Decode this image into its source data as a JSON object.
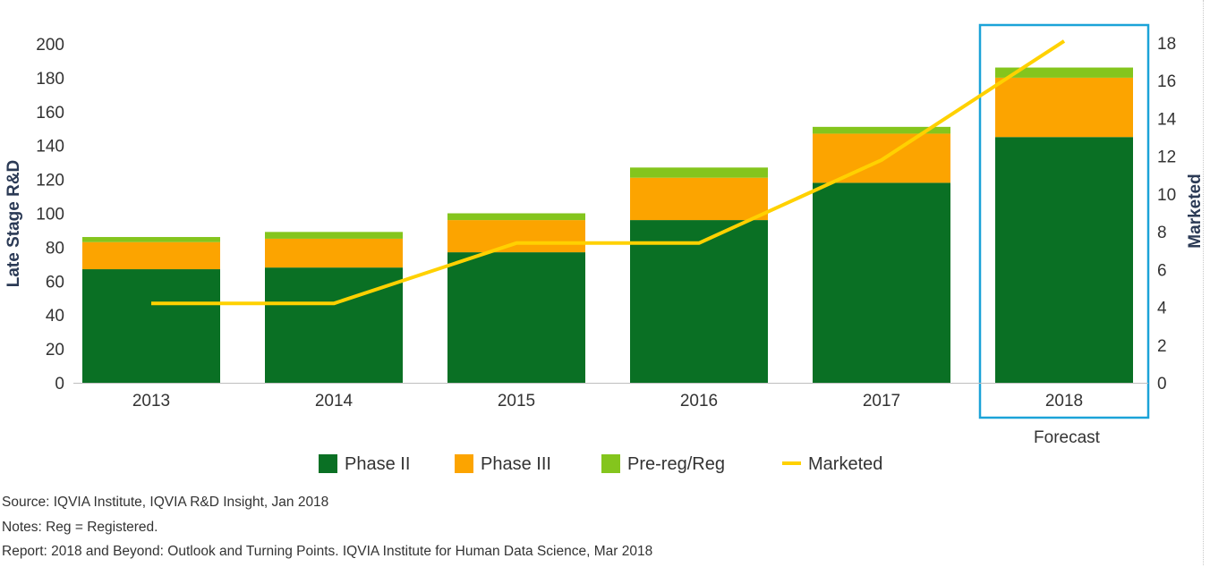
{
  "chart_data": {
    "type": "bar",
    "stacked": true,
    "categories": [
      "2013",
      "2014",
      "2015",
      "2016",
      "2017",
      "2018"
    ],
    "series": [
      {
        "name": "Phase II",
        "color": "#0a7024",
        "values": [
          67,
          68,
          77,
          96,
          118,
          145
        ]
      },
      {
        "name": "Phase III",
        "color": "#fca400",
        "values": [
          16,
          17,
          19,
          25,
          29,
          35
        ]
      },
      {
        "name": "Pre-reg/Reg",
        "color": "#84c51d",
        "values": [
          3,
          4,
          4,
          6,
          4,
          6
        ]
      }
    ],
    "line_series": {
      "name": "Marketed",
      "color": "#ffd100",
      "axis": "right",
      "values": [
        4.2,
        4.2,
        7.4,
        7.4,
        11.8,
        18.1
      ]
    },
    "ylabel": "Late Stage R&D",
    "ylabel_right": "Marketed",
    "ylim": [
      0,
      200
    ],
    "ylim_right": [
      0,
      18
    ],
    "yticks": [
      "0",
      "20",
      "40",
      "60",
      "80",
      "100",
      "120",
      "140",
      "160",
      "180",
      "200"
    ],
    "yticks_right": [
      "0",
      "2",
      "4",
      "6",
      "8",
      "10",
      "12",
      "14",
      "16",
      "18"
    ],
    "highlight": {
      "category": "2018",
      "label": "Forecast",
      "color": "#1ba3d8"
    },
    "legend": {
      "position": "bottom"
    },
    "grid": false
  },
  "notes": [
    "Source: IQVIA Institute, IQVIA R&D Insight, Jan 2018",
    "Notes: Reg = Registered.",
    "Report: 2018 and Beyond: Outlook and Turning Points. IQVIA Institute for Human Data Science, Mar 2018"
  ]
}
